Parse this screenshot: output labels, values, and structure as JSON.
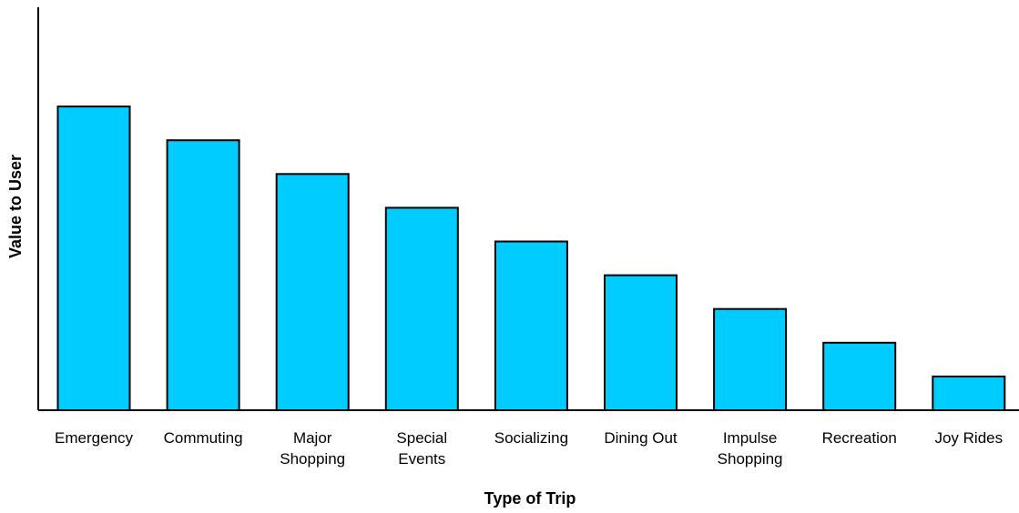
{
  "chart_data": {
    "type": "bar",
    "title": "",
    "xlabel": "Type of Trip",
    "ylabel": "Value to User",
    "categories": [
      [
        "Emergency"
      ],
      [
        "Commuting"
      ],
      [
        "Major",
        "Shopping"
      ],
      [
        "Special",
        "Events"
      ],
      [
        "Socializing"
      ],
      [
        "Dining Out"
      ],
      [
        "Impulse",
        "Shopping"
      ],
      [
        "Recreation"
      ],
      [
        "Joy Rides"
      ]
    ],
    "values": [
      9,
      8,
      7,
      6,
      5,
      4,
      3,
      2,
      1
    ],
    "ylim": [
      0,
      10
    ],
    "grid": false,
    "legend": "none",
    "bar_color": "#00CCFF",
    "edge_color": "#000000"
  }
}
